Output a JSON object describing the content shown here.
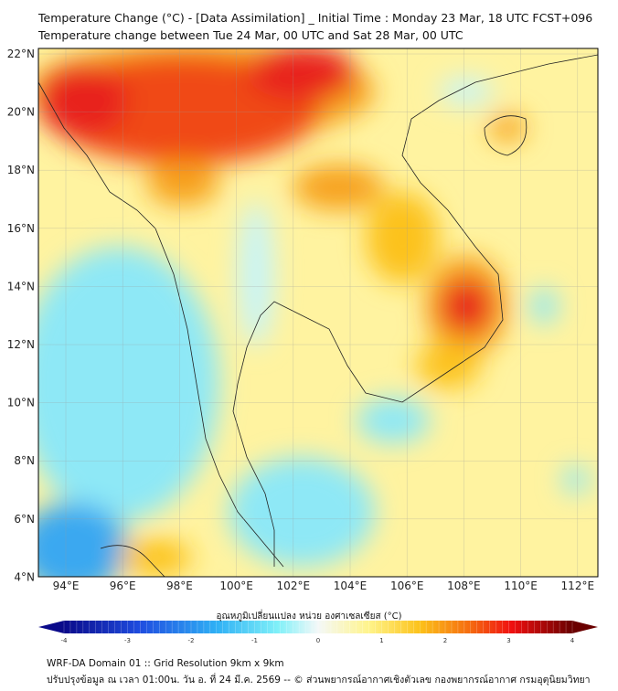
{
  "header": {
    "title": "Temperature Change (°C) - [Data Assimilation] _ Initial Time : Monday 23 Mar, 18 UTC FCST+096",
    "subtitle": "Temperature change between Tue 24 Mar, 00 UTC and Sat 28 Mar, 00 UTC"
  },
  "map": {
    "lat_labels": [
      "22°N",
      "20°N",
      "18°N",
      "16°N",
      "14°N",
      "12°N",
      "10°N",
      "8°N",
      "6°N",
      "4°N"
    ],
    "lon_labels": [
      "94°E",
      "96°E",
      "98°E",
      "100°E",
      "102°E",
      "104°E",
      "106°E",
      "108°E",
      "110°E",
      "112°E"
    ],
    "colors": {
      "red": "#e8241a",
      "orange": "#f7a21b",
      "yellow": "#fff3a0",
      "cyan": "#7fe3f5",
      "blue": "#3aa0f0"
    }
  },
  "colorbar": {
    "label": "อุณหภูมิเปลี่ยนแปลง หน่วย องศาเซลเซียส (°C)",
    "ticks": [
      "-4",
      "-3",
      "-2",
      "-1",
      "0",
      "1",
      "2",
      "3",
      "4"
    ]
  },
  "footer": {
    "line1": "WRF-DA Domain 01 :: Grid Resolution 9km x 9km",
    "line2": "ปรับปรุงข้อมูล ณ เวลา 01:00น. วัน อ. ที่ 24 มี.ค. 2569 -- © ส่วนพยากรณ์อากาศเชิงตัวเลข กองพยากรณ์อากาศ กรมอุตุนิยมวิทยา"
  }
}
